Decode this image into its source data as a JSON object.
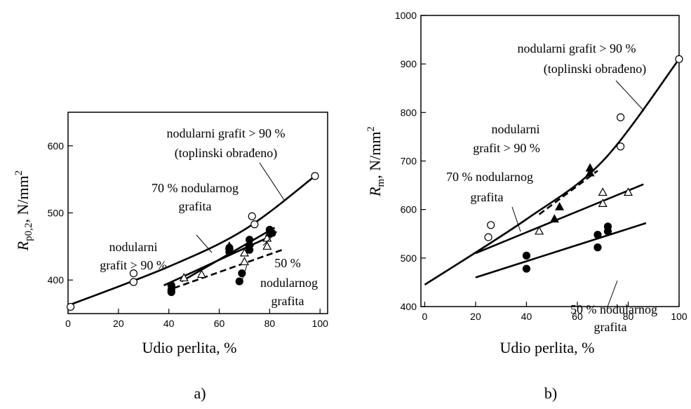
{
  "chart_data": [
    {
      "type": "scatter",
      "panel": "a)",
      "xlabel": "Udio perlita, %",
      "ylabel": {
        "symbol": "R",
        "sub": "p0,2",
        "unit": ", N/mm",
        "sup": "2"
      },
      "xlim": [
        0,
        103
      ],
      "ylim": [
        350,
        650
      ],
      "xticks": [
        0,
        20,
        40,
        60,
        80,
        100
      ],
      "yticks": [
        400,
        500,
        600
      ],
      "series": [
        {
          "marker": "circle-open",
          "x": [
            1,
            26,
            26,
            73,
            74,
            98
          ],
          "values": [
            360,
            410,
            397,
            495,
            483,
            555
          ]
        },
        {
          "marker": "circle-filled",
          "x": [
            41,
            41,
            41,
            64,
            64,
            72,
            72,
            72,
            68,
            69,
            80,
            81
          ],
          "values": [
            392,
            385,
            382,
            448,
            442,
            460,
            452,
            445,
            398,
            410,
            475,
            470
          ]
        },
        {
          "marker": "triangle-open",
          "x": [
            46,
            53,
            70,
            70,
            79,
            79
          ],
          "values": [
            403,
            408,
            427,
            440,
            450,
            462
          ]
        },
        {
          "marker": "triangle-filled",
          "x": [
            64,
            72,
            80
          ],
          "values": [
            450,
            455,
            470
          ]
        }
      ],
      "lines": [
        {
          "dash": false,
          "x": [
            0,
            40,
            70,
            98
          ],
          "values": [
            362,
            420,
            475,
            555
          ]
        },
        {
          "dash": false,
          "x": [
            38,
            82
          ],
          "values": [
            392,
            468
          ]
        },
        {
          "dash": false,
          "x": [
            45,
            82
          ],
          "values": [
            398,
            478
          ]
        },
        {
          "dash": true,
          "x": [
            42,
            85
          ],
          "values": [
            388,
            445
          ]
        }
      ],
      "annotations": [
        {
          "lines": [
            "nodularni grafit > 90 %",
            "(toplinski obrađeno)"
          ]
        },
        {
          "lines": [
            "70 % nodularnog",
            "grafita"
          ]
        },
        {
          "lines": [
            "nodularni",
            "grafit > 90 %"
          ]
        },
        {
          "lines": [
            "50 %",
            "nodularnog",
            "grafita"
          ]
        }
      ]
    },
    {
      "type": "scatter",
      "panel": "b)",
      "xlabel": "Udio perlita, %",
      "ylabel": {
        "symbol": "R",
        "sub": "m",
        "unit": ", N/mm",
        "sup": "2"
      },
      "xlim": [
        -1.5,
        100
      ],
      "ylim": [
        400,
        1000
      ],
      "xticks": [
        0,
        20,
        40,
        60,
        80,
        100
      ],
      "yticks": [
        400,
        500,
        600,
        700,
        800,
        900,
        1000
      ],
      "series": [
        {
          "marker": "circle-open",
          "x": [
            25,
            26,
            77,
            77,
            100
          ],
          "values": [
            543,
            568,
            790,
            730,
            910
          ]
        },
        {
          "marker": "triangle-open",
          "x": [
            45,
            70,
            70,
            80
          ],
          "values": [
            555,
            635,
            612,
            635
          ]
        },
        {
          "marker": "triangle-filled",
          "x": [
            53,
            65,
            65,
            51
          ],
          "values": [
            605,
            685,
            675,
            580
          ]
        },
        {
          "marker": "circle-filled",
          "x": [
            40,
            40,
            68,
            68,
            72,
            72
          ],
          "values": [
            505,
            478,
            548,
            522,
            565,
            555
          ]
        }
      ],
      "lines": [
        {
          "dash": false,
          "x": [
            0,
            40,
            70,
            100
          ],
          "values": [
            445,
            580,
            700,
            910
          ]
        },
        {
          "dash": true,
          "x": [
            45,
            68
          ],
          "values": [
            590,
            680
          ]
        },
        {
          "dash": false,
          "x": [
            20,
            86
          ],
          "values": [
            510,
            652
          ]
        },
        {
          "dash": false,
          "x": [
            20,
            87
          ],
          "values": [
            460,
            572
          ]
        }
      ],
      "annotations": [
        {
          "lines": [
            "nodularni grafit > 90 %",
            "(toplinski obrađeno)"
          ]
        },
        {
          "lines": [
            "nodularni",
            "grafit > 90 %"
          ]
        },
        {
          "lines": [
            "70 % nodularnog",
            "grafita"
          ]
        },
        {
          "lines": [
            "50 % nodularnog",
            "grafita"
          ]
        }
      ]
    }
  ]
}
